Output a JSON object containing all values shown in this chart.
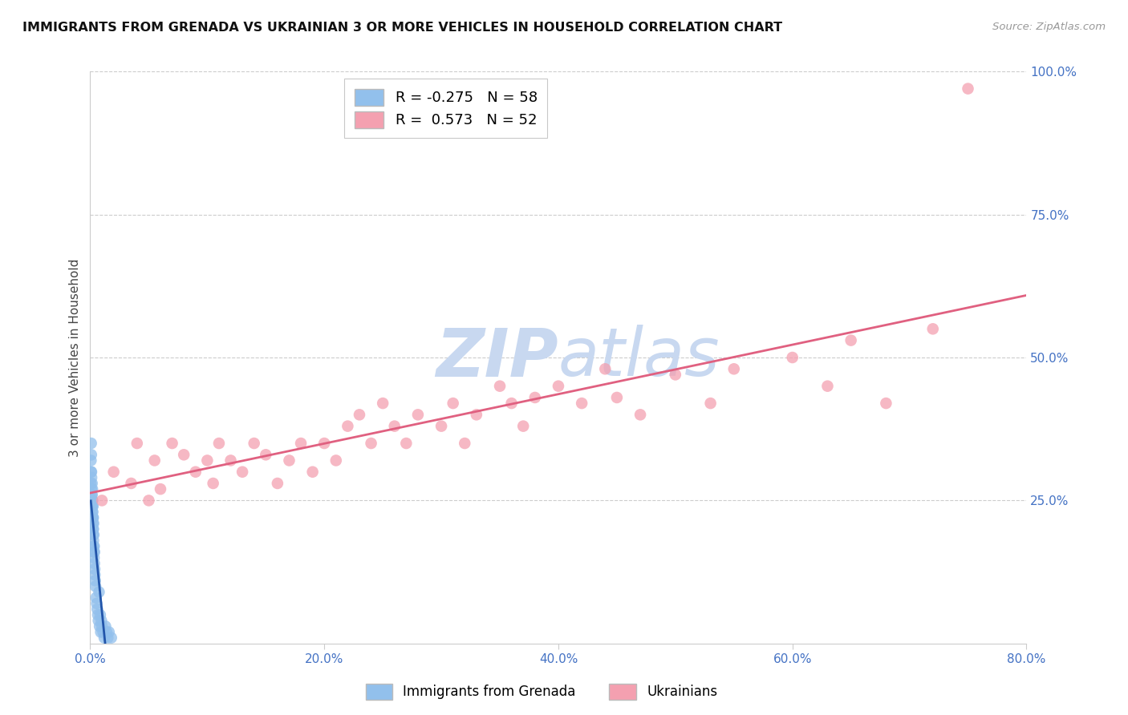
{
  "title": "IMMIGRANTS FROM GRENADA VS UKRAINIAN 3 OR MORE VEHICLES IN HOUSEHOLD CORRELATION CHART",
  "source": "Source: ZipAtlas.com",
  "ylabel": "3 or more Vehicles in Household",
  "xlim": [
    0.0,
    80.0
  ],
  "ylim": [
    0.0,
    100.0
  ],
  "grenada_R": -0.275,
  "grenada_N": 58,
  "ukrainian_R": 0.573,
  "ukrainian_N": 52,
  "grenada_color": "#92C0EC",
  "ukrainian_color": "#F4A0B0",
  "grenada_line_color": "#2255AA",
  "ukrainian_line_color": "#E06080",
  "watermark_color": "#C8D8F0",
  "axis_label_color": "#4472C4",
  "grid_color": "#CCCCCC",
  "background_color": "#FFFFFF",
  "grenada_x": [
    0.05,
    0.06,
    0.07,
    0.08,
    0.09,
    0.1,
    0.1,
    0.11,
    0.12,
    0.13,
    0.14,
    0.15,
    0.15,
    0.16,
    0.17,
    0.18,
    0.19,
    0.2,
    0.2,
    0.21,
    0.22,
    0.22,
    0.23,
    0.24,
    0.25,
    0.25,
    0.26,
    0.27,
    0.28,
    0.29,
    0.3,
    0.3,
    0.32,
    0.33,
    0.35,
    0.36,
    0.38,
    0.4,
    0.42,
    0.45,
    0.5,
    0.55,
    0.6,
    0.65,
    0.7,
    0.75,
    0.8,
    0.85,
    0.9,
    0.95,
    1.0,
    1.1,
    1.2,
    1.3,
    1.4,
    1.5,
    1.6,
    1.8
  ],
  "grenada_y": [
    28,
    32,
    30,
    35,
    33,
    30,
    27,
    29,
    26,
    25,
    24,
    28,
    26,
    25,
    23,
    27,
    24,
    25,
    22,
    23,
    21,
    24,
    22,
    20,
    22,
    19,
    20,
    18,
    21,
    17,
    19,
    16,
    15,
    17,
    14,
    16,
    13,
    12,
    11,
    10,
    8,
    7,
    6,
    5,
    4,
    9,
    3,
    5,
    2,
    4,
    3,
    2,
    1,
    3,
    2,
    1,
    2,
    1
  ],
  "ukrainian_x": [
    1.0,
    2.0,
    3.5,
    4.0,
    5.0,
    5.5,
    6.0,
    7.0,
    8.0,
    9.0,
    10.0,
    10.5,
    11.0,
    12.0,
    13.0,
    14.0,
    15.0,
    16.0,
    17.0,
    18.0,
    19.0,
    20.0,
    21.0,
    22.0,
    23.0,
    24.0,
    25.0,
    26.0,
    27.0,
    28.0,
    30.0,
    31.0,
    32.0,
    33.0,
    35.0,
    36.0,
    37.0,
    38.0,
    40.0,
    42.0,
    44.0,
    45.0,
    47.0,
    50.0,
    53.0,
    55.0,
    60.0,
    63.0,
    65.0,
    68.0,
    72.0,
    75.0
  ],
  "ukrainian_y": [
    25,
    30,
    28,
    35,
    25,
    32,
    27,
    35,
    33,
    30,
    32,
    28,
    35,
    32,
    30,
    35,
    33,
    28,
    32,
    35,
    30,
    35,
    32,
    38,
    40,
    35,
    42,
    38,
    35,
    40,
    38,
    42,
    35,
    40,
    45,
    42,
    38,
    43,
    45,
    42,
    48,
    43,
    40,
    47,
    42,
    48,
    50,
    45,
    53,
    42,
    55,
    97
  ]
}
